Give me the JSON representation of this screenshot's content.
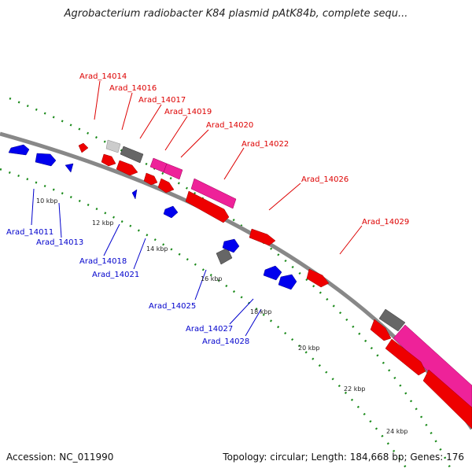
{
  "title": "Agrobacterium radiobacter K84 plasmid pAtK84b, complete sequ...",
  "footer": {
    "accession": "Accession: NC_011990",
    "summary": "Topology: circular; Length: 184,668 bp; Genes: 176"
  },
  "colors": {
    "forward_gene": "#ff0000",
    "reverse_gene": "#0000ff",
    "pseudo_gene": "#666666",
    "rna_gene": "#ff1493",
    "backbone": "#888888",
    "ticks": "#1a8a1a",
    "label_forward": "#dd0000",
    "label_reverse": "#0000cc"
  },
  "scale_ticks": [
    "10 kbp",
    "12 kbp",
    "14 kbp",
    "16 kbp",
    "18 kbp",
    "20 kbp",
    "22 kbp",
    "24 kbp"
  ],
  "forward_labels": [
    "Arad_14014",
    "Arad_14016",
    "Arad_14017",
    "Arad_14019",
    "Arad_14020",
    "Arad_14022",
    "Arad_14026",
    "Arad_14029"
  ],
  "reverse_labels": [
    "Arad_14011",
    "Arad_14013",
    "Arad_14018",
    "Arad_14021",
    "Arad_14025",
    "Arad_14027",
    "Arad_14028"
  ]
}
